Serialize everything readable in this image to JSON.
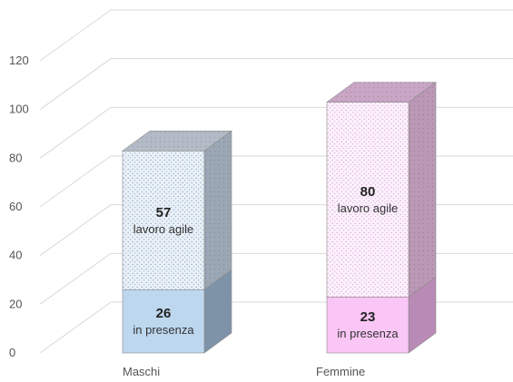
{
  "chart_data": {
    "type": "bar",
    "stacked": true,
    "three_d": true,
    "categories": [
      "Maschi",
      "Femmine"
    ],
    "series": [
      {
        "name": "in presenza",
        "values": [
          26,
          23
        ]
      },
      {
        "name": "lavoro agile",
        "values": [
          57,
          80
        ]
      }
    ],
    "ylim": [
      0,
      120
    ],
    "yticks": [
      0,
      20,
      40,
      60,
      80,
      100,
      120
    ],
    "grid": true,
    "legend": "none",
    "colors": {
      "Maschi": {
        "in presenza": "#bdd7ee",
        "lavoro agile": "#dfe9f3"
      },
      "Femmine": {
        "in presenza": "#f9c6f5",
        "lavoro agile": "#fae6fa"
      }
    }
  }
}
